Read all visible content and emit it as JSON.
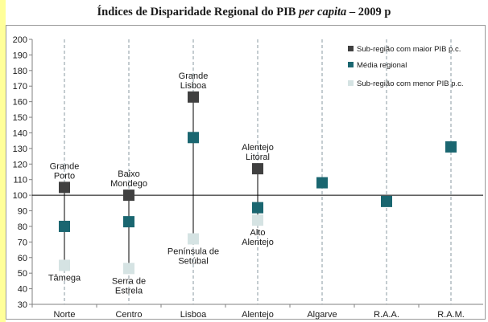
{
  "chart_data": {
    "type": "scatter",
    "title_parts": {
      "pre": "Índices de Disparidade Regional do PIB ",
      "em": "per capita",
      "post": " – 2009 p"
    },
    "xlabel": "",
    "ylabel": "",
    "ylim": [
      30,
      200
    ],
    "yticks": [
      30,
      40,
      50,
      60,
      70,
      80,
      90,
      100,
      110,
      120,
      130,
      140,
      150,
      160,
      170,
      180,
      190,
      200
    ],
    "categories": [
      "Norte",
      "Centro",
      "Lisboa",
      "Alentejo",
      "Algarve",
      "R.A.A.",
      "R.A.M."
    ],
    "reference_line": 100,
    "grid": "vertical-dashed",
    "legend_position": "top-right",
    "colors": {
      "max": "#404040",
      "mean": "#1a6670",
      "min": "#d5e3e3"
    },
    "series": [
      {
        "key": "max",
        "name": "Sub-região com maior PIB p.c.",
        "values": [
          105,
          100,
          163,
          117,
          null,
          null,
          null
        ]
      },
      {
        "key": "mean",
        "name": "Média regional",
        "values": [
          80,
          83,
          137,
          92,
          108,
          96,
          131
        ]
      },
      {
        "key": "min",
        "name": "Sub-região com menor PIB p.c.",
        "values": [
          55,
          53,
          72,
          84,
          null,
          null,
          null
        ]
      }
    ],
    "annotations": [
      {
        "cat": 0,
        "lines": [
          "Grande",
          "Porto"
        ],
        "anchor": "max",
        "side": "above"
      },
      {
        "cat": 1,
        "lines": [
          "Baixo",
          "Mondego"
        ],
        "anchor": "max",
        "side": "above"
      },
      {
        "cat": 2,
        "lines": [
          "Grande",
          "Lisboa"
        ],
        "anchor": "max",
        "side": "above"
      },
      {
        "cat": 3,
        "lines": [
          "Alentejo",
          "Litoral"
        ],
        "anchor": "max",
        "side": "above"
      },
      {
        "cat": 0,
        "lines": [
          "Tâmega"
        ],
        "anchor": "min",
        "side": "below"
      },
      {
        "cat": 1,
        "lines": [
          "Serra de",
          "Estrela"
        ],
        "anchor": "min",
        "side": "below"
      },
      {
        "cat": 2,
        "lines": [
          "Península de",
          "Setúbal"
        ],
        "anchor": "min",
        "side": "below"
      },
      {
        "cat": 3,
        "lines": [
          "Alto",
          "Alentejo"
        ],
        "anchor": "min",
        "side": "below"
      }
    ]
  }
}
